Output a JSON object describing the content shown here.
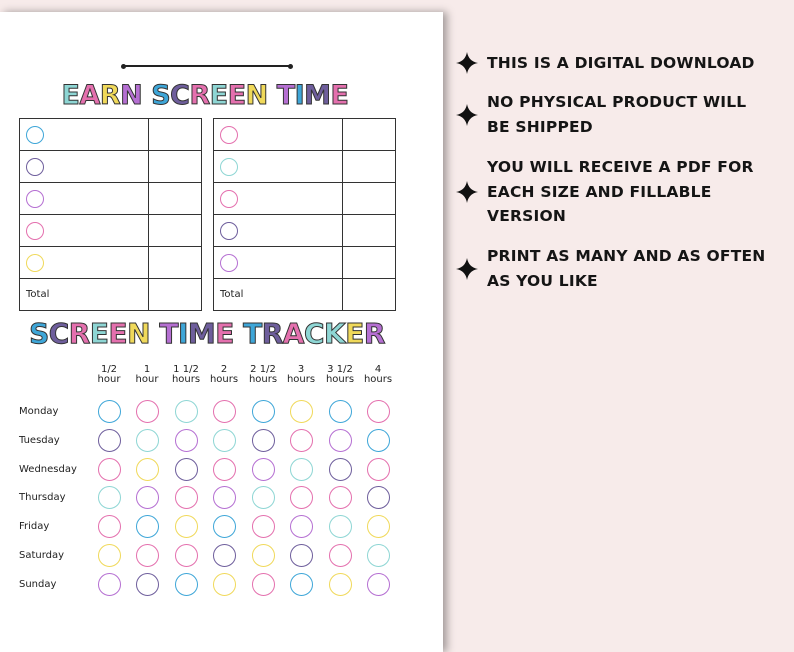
{
  "colors": {
    "B": "#3ea6d8",
    "P": "#e470ae",
    "T": "#8ed6d4",
    "V": "#b56fd2",
    "D": "#6e5e9c",
    "Y": "#f0d95a",
    "background": "#f7ebea"
  },
  "earn": {
    "title": "EARN SCREEN TIME",
    "title_colors": "TPYV BDPTPY VBDP",
    "left": {
      "circles": [
        "B",
        "D",
        "V",
        "P",
        "Y"
      ],
      "total_label": "Total"
    },
    "right": {
      "circles": [
        "P",
        "T",
        "P",
        "D",
        "V"
      ],
      "total_label": "Total"
    }
  },
  "tracker": {
    "title": "SCREEN TIME TRACKER",
    "title_colors": "BDPTPY VBDP BDPTTYV",
    "columns": [
      [
        "1/2",
        "hour"
      ],
      [
        "1",
        "hour"
      ],
      [
        "1 1/2",
        "hours"
      ],
      [
        "2",
        "hours"
      ],
      [
        "2 1/2",
        "hours"
      ],
      [
        "3",
        "hours"
      ],
      [
        "3 1/2",
        "hours"
      ],
      [
        "4",
        "hours"
      ]
    ],
    "rows": [
      {
        "day": "Monday",
        "circles": "BPTPBYBP"
      },
      {
        "day": "Tuesday",
        "circles": "DTVTDPVB"
      },
      {
        "day": "Wednesday",
        "circles": "PYDPVTDP"
      },
      {
        "day": "Thursday",
        "circles": "TVPVTPPD"
      },
      {
        "day": "Friday",
        "circles": "PBYBPVTY"
      },
      {
        "day": "Saturday",
        "circles": "YPPDYDPT"
      },
      {
        "day": "Sunday",
        "circles": "VDBYPBYV"
      }
    ]
  },
  "bullets": [
    {
      "icon": "four-point-star-icon",
      "lines": [
        "THIS IS A DIGITAL DOWNLOAD"
      ]
    },
    {
      "icon": "four-point-star-icon",
      "lines": [
        "NO PHYSICAL PRODUCT WILL",
        "BE SHIPPED"
      ]
    },
    {
      "icon": "four-point-star-icon",
      "lines": [
        "YOU WILL RECEIVE A PDF FOR",
        "EACH SIZE AND FILLABLE",
        "VERSION"
      ]
    },
    {
      "icon": "four-point-star-icon",
      "lines": [
        "PRINT AS MANY AND AS OFTEN",
        "AS YOU LIKE"
      ]
    }
  ]
}
